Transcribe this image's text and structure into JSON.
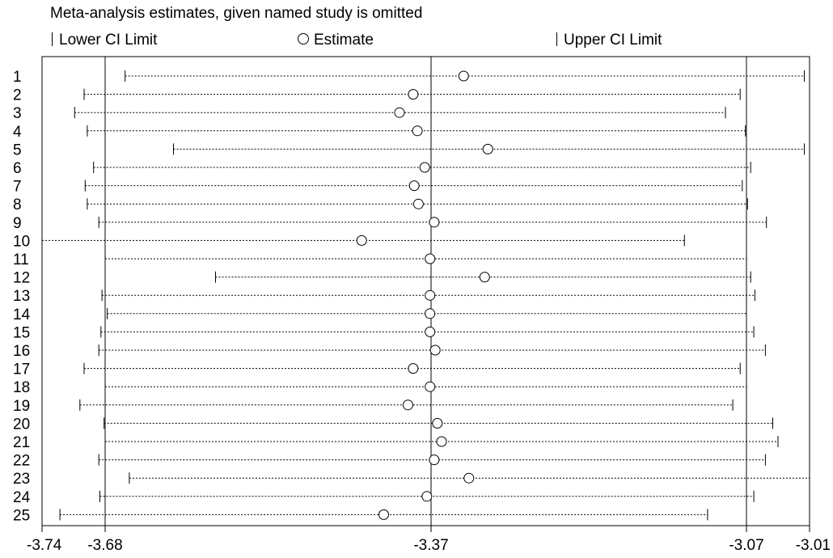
{
  "chart_data": {
    "type": "scatter",
    "title": "Meta-analysis estimates, given named study is omitted",
    "legend": {
      "placement": "top",
      "entries": [
        {
          "name": "Lower CI Limit",
          "symbol": "tick"
        },
        {
          "name": "Estimate",
          "symbol": "circle"
        },
        {
          "name": "Upper CI Limit",
          "symbol": "tick"
        }
      ]
    },
    "xlim": [
      -3.74,
      -3.01
    ],
    "x_tick_labels": [
      "-3.74",
      "-3.68",
      "-3.37",
      "-3.07",
      "-3.01"
    ],
    "x_ticks": [
      -3.74,
      -3.68,
      -3.37,
      -3.07,
      -3.01
    ],
    "reference_lines": [
      -3.68,
      -3.37,
      -3.07
    ],
    "studies": [
      "1",
      "2",
      "3",
      "4",
      "5",
      "6",
      "7",
      "8",
      "9",
      "10",
      "11",
      "12",
      "13",
      "14",
      "15",
      "16",
      "17",
      "18",
      "19",
      "20",
      "21",
      "22",
      "23",
      "24",
      "25"
    ],
    "lower": [
      -3.661,
      -3.7,
      -3.709,
      -3.697,
      -3.615,
      -3.691,
      -3.699,
      -3.697,
      -3.686,
      -3.74,
      -3.68,
      -3.575,
      -3.683,
      -3.678,
      -3.684,
      -3.686,
      -3.7,
      -3.68,
      -3.704,
      -3.681,
      -3.68,
      -3.686,
      -3.657,
      -3.685,
      -3.723
    ],
    "estimate": [
      -3.339,
      -3.387,
      -3.4,
      -3.383,
      -3.316,
      -3.376,
      -3.386,
      -3.382,
      -3.367,
      -3.436,
      -3.371,
      -3.319,
      -3.371,
      -3.371,
      -3.371,
      -3.366,
      -3.387,
      -3.371,
      -3.392,
      -3.364,
      -3.36,
      -3.367,
      -3.334,
      -3.374,
      -3.415
    ],
    "upper": [
      -3.015,
      -3.076,
      -3.09,
      -3.071,
      -3.015,
      -3.066,
      -3.074,
      -3.069,
      -3.051,
      -3.129,
      -3.07,
      -3.066,
      -3.062,
      -3.07,
      -3.063,
      -3.052,
      -3.076,
      -3.07,
      -3.083,
      -3.045,
      -3.04,
      -3.052,
      -3.01,
      -3.063,
      -3.107
    ]
  }
}
